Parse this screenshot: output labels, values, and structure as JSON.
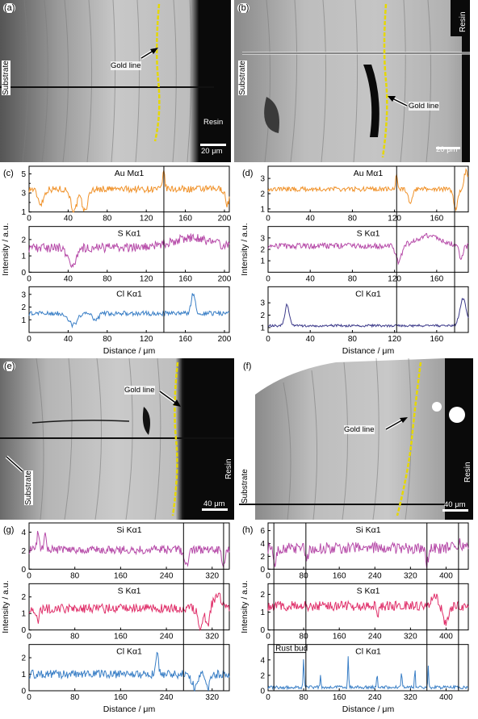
{
  "panels": {
    "a": {
      "letter": "(a)",
      "labels": {
        "substrate": "Substrate",
        "gold": "Gold line",
        "resin": "Resin",
        "scale": "20 μm"
      }
    },
    "b": {
      "letter": "(b)",
      "labels": {
        "substrate": "Substrate",
        "gold": "Gold line",
        "resin": "Resin",
        "scale": "20 μm"
      }
    },
    "e": {
      "letter": "(e)",
      "labels": {
        "substrate": "Substrate",
        "gold": "Gold line",
        "resin": "Resin",
        "scale": "40 μm"
      }
    },
    "f": {
      "letter": "(f)",
      "labels": {
        "substrate": "Substrate",
        "gold": "Gold line",
        "resin": "Resin",
        "scale": "40 μm"
      }
    }
  },
  "colors": {
    "au": "#f0922a",
    "s_cd": "#b64aa8",
    "cl_c": "#3a7fc6",
    "cl_d": "#3c3a8a",
    "si": "#b64aa8",
    "s_gh": "#e0306a",
    "cl_gh": "#3a7fc6",
    "gold": "#e6d800"
  },
  "common": {
    "xlabel": "Distance / μm",
    "ylabel": "Intensity / a.u."
  },
  "chart_data": [
    {
      "id": "c",
      "letter": "(c)",
      "type": "line",
      "xlim": [
        0,
        205
      ],
      "xticks": [
        0,
        40,
        80,
        120,
        160,
        200
      ],
      "xlabel": "Distance / μm",
      "ylabel": "Intensity / a.u.",
      "vlines": [
        138
      ],
      "series": [
        {
          "name": "Au Mα1",
          "color": "#f0922a",
          "ylim": [
            1,
            5.8
          ],
          "yticks": [
            1,
            3,
            5
          ],
          "extra_yticks": [
            2,
            4
          ],
          "base": 3.4,
          "noise": 0.35,
          "dips": [
            [
              12,
              -1.5,
              3
            ],
            [
              46,
              -2.4,
              3
            ],
            [
              57,
              -2.3,
              3
            ],
            [
              138,
              2,
              1
            ],
            [
              203,
              -1.6,
              2
            ]
          ],
          "peaks": []
        },
        {
          "name": "S Kα1",
          "color": "#b64aa8",
          "ylim": [
            0,
            2.8
          ],
          "yticks": [
            0,
            1,
            2
          ],
          "base": 1.5,
          "noise": 0.28,
          "dips": [
            [
              44,
              -1.1,
              4
            ]
          ],
          "peaks": [
            [
              165,
              0.6,
              20
            ]
          ]
        },
        {
          "name": "Cl Kα1",
          "color": "#3a7fc6",
          "ylim": [
            0,
            3.6
          ],
          "yticks": [
            1,
            2,
            3
          ],
          "base": 1.5,
          "noise": 0.18,
          "dips": [
            [
              45,
              -0.9,
              4
            ],
            [
              68,
              -0.6,
              3
            ]
          ],
          "peaks": [
            [
              168,
              1.6,
              2
            ]
          ]
        }
      ]
    },
    {
      "id": "d",
      "letter": "(d)",
      "type": "line",
      "xlim": [
        0,
        190
      ],
      "xticks": [
        0,
        40,
        80,
        120,
        160
      ],
      "xlabel": "Distance / μm",
      "ylabel": "Intensity / a.u.",
      "vlines": [
        122,
        177
      ],
      "series": [
        {
          "name": "Au Mα1",
          "color": "#f0922a",
          "ylim": [
            0.8,
            3.8
          ],
          "yticks": [
            1,
            2,
            3
          ],
          "base": 2.3,
          "noise": 0.15,
          "dips": [
            [
              135,
              -1.0,
              2
            ],
            [
              178,
              -1.3,
              2
            ]
          ],
          "peaks": [
            [
              122,
              0.9,
              1
            ],
            [
              188,
              1.2,
              2
            ]
          ]
        },
        {
          "name": "S Kα1",
          "color": "#b64aa8",
          "ylim": [
            0,
            4
          ],
          "yticks": [
            1,
            2,
            3
          ],
          "base": 2.3,
          "noise": 0.25,
          "dips": [
            [
              124,
              -1.4,
              3
            ],
            [
              183,
              -1,
              2
            ]
          ],
          "peaks": [
            [
              152,
              0.9,
              12
            ]
          ]
        },
        {
          "name": "Cl Kα1",
          "color": "#3c3a8a",
          "ylim": [
            0.6,
            4.3
          ],
          "yticks": [
            1,
            2,
            3
          ],
          "base": 1.15,
          "noise": 0.1,
          "dips": [],
          "peaks": [
            [
              18,
              1.7,
              2
            ],
            [
              185,
              2.2,
              3
            ]
          ]
        }
      ]
    },
    {
      "id": "g",
      "letter": "(g)",
      "type": "line",
      "xlim": [
        0,
        350
      ],
      "xticks": [
        0,
        80,
        160,
        240,
        320
      ],
      "xlabel": "Distance / μm",
      "ylabel": "Intensity / a.u.",
      "vlines": [
        270,
        340
      ],
      "series": [
        {
          "name": "Si Kα1",
          "color": "#b64aa8",
          "ylim": [
            0,
            5
          ],
          "yticks": [
            0,
            2,
            4
          ],
          "base": 2.1,
          "noise": 0.45,
          "dips": [
            [
              275,
              -1.6,
              4
            ],
            [
              340,
              -1.5,
              3
            ]
          ],
          "peaks": [
            [
              16,
              2.0,
              2
            ],
            [
              28,
              1.9,
              2
            ]
          ]
        },
        {
          "name": "S Kα1",
          "color": "#e0306a",
          "ylim": [
            0,
            2.8
          ],
          "yticks": [
            0,
            1,
            2
          ],
          "base": 1.3,
          "noise": 0.28,
          "dips": [
            [
              15,
              -0.7,
              3
            ],
            [
              300,
              -1.2,
              4
            ],
            [
              312,
              -1.1,
              3
            ]
          ],
          "peaks": [
            [
              330,
              0.7,
              8
            ]
          ]
        },
        {
          "name": "Cl Kα1",
          "color": "#3a7fc6",
          "ylim": [
            0,
            2.8
          ],
          "yticks": [
            0,
            1,
            2
          ],
          "base": 1.0,
          "noise": 0.25,
          "dips": [
            [
              290,
              -0.8,
              5
            ],
            [
              312,
              -0.9,
              3
            ]
          ],
          "peaks": [
            [
              224,
              1.4,
              2
            ]
          ]
        }
      ]
    },
    {
      "id": "h",
      "letter": "(h)",
      "type": "line",
      "xlim": [
        0,
        450
      ],
      "xticks": [
        0,
        80,
        160,
        240,
        320,
        400
      ],
      "xlabel": "Distance / μm",
      "ylabel": "Intensity / a.u.",
      "vlines": [
        13,
        85,
        357,
        428
      ],
      "rust_bud": {
        "label": "Rust bud",
        "from": 13,
        "to": 85
      },
      "series": [
        {
          "name": "Si Kα1",
          "color": "#b64aa8",
          "ylim": [
            0,
            7.2
          ],
          "yticks": [
            0,
            2,
            4,
            6
          ],
          "base": 3.3,
          "noise": 0.9,
          "dips": [
            [
              15,
              -2.3,
              3
            ],
            [
              88,
              -1.8,
              3
            ],
            [
              357,
              -2.4,
              3
            ],
            [
              428,
              -2.4,
              3
            ]
          ],
          "peaks": [
            [
              430,
              2.5,
              3
            ]
          ]
        },
        {
          "name": "S Kα1",
          "color": "#e0306a",
          "ylim": [
            0,
            2.6
          ],
          "yticks": [
            0,
            1,
            2
          ],
          "base": 1.35,
          "noise": 0.27,
          "dips": [
            [
              400,
              -1.0,
              6
            ],
            [
              246,
              -0.6,
              2
            ]
          ],
          "peaks": [
            [
              375,
              0.7,
              6
            ]
          ]
        },
        {
          "name": "Cl Kα1",
          "color": "#3a7fc6",
          "ylim": [
            0,
            6
          ],
          "yticks": [
            0,
            2,
            4
          ],
          "base": 0.45,
          "noise": 0.2,
          "dips": [],
          "peaks": [
            [
              80,
              3.8,
              1
            ],
            [
              180,
              4.2,
              1
            ],
            [
              360,
              2.8,
              1
            ],
            [
              300,
              2.2,
              1
            ],
            [
              245,
              2.0,
              1
            ],
            [
              118,
              1.8,
              1
            ],
            [
              330,
              2.4,
              1
            ]
          ]
        }
      ]
    }
  ]
}
